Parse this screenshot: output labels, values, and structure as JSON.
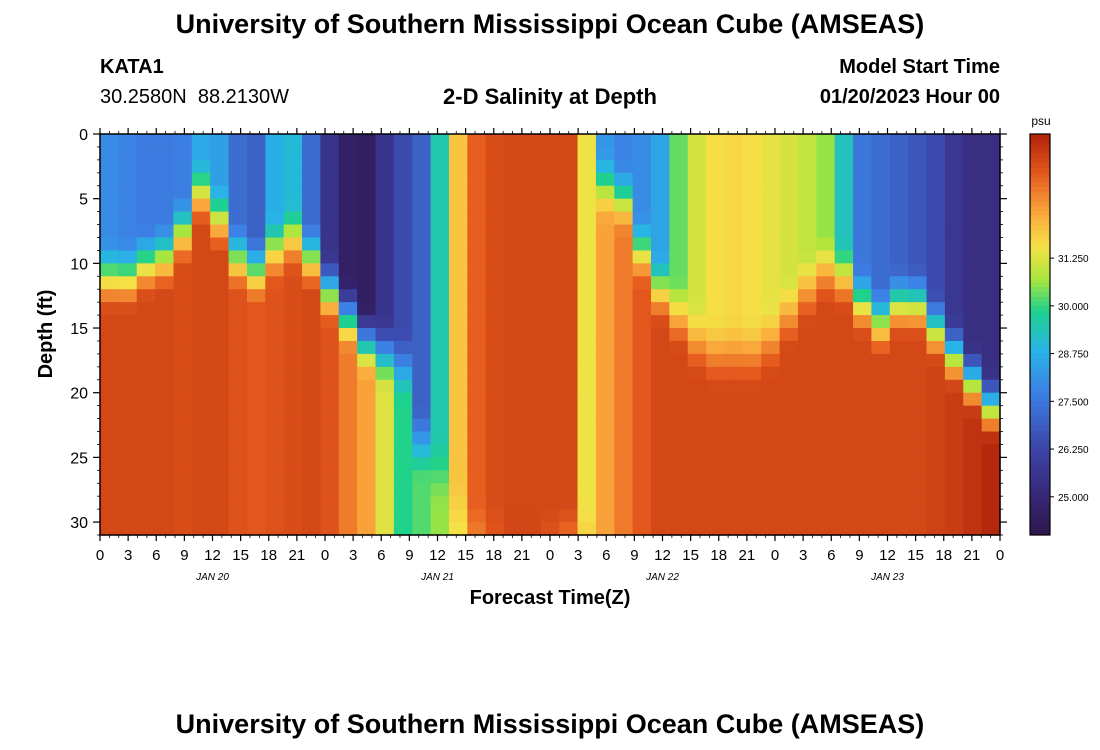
{
  "header": {
    "title": "University of Southern Mississippi Ocean Cube (AMSEAS)",
    "station_id": "KATA1",
    "station_coords": "30.2580N  88.2130W",
    "plot_title": "2-D Salinity at Depth",
    "model_start_label": "Model Start Time",
    "model_start_value": "01/20/2023 Hour 00"
  },
  "footer": {
    "title": "University of Southern Mississippi Ocean Cube (AMSEAS)"
  },
  "colors": {
    "low": "#2d1a4a",
    "mid": "#1fd08a",
    "high": "#c0300a"
  },
  "chart_data": {
    "type": "heatmap",
    "title": "2-D Salinity at Depth",
    "xlabel": "Forecast Time(Z)",
    "ylabel": "Depth (ft)",
    "x_range_hours": [
      0,
      96
    ],
    "x_tick_step_hours": 3,
    "x_tick_labels": [
      "0",
      "3",
      "6",
      "9",
      "12",
      "15",
      "18",
      "21",
      "0",
      "3",
      "6",
      "9",
      "12",
      "15",
      "18",
      "21",
      "0",
      "3",
      "6",
      "9",
      "12",
      "15",
      "18",
      "21",
      "0",
      "3",
      "6",
      "9",
      "12",
      "15",
      "18",
      "21",
      "0"
    ],
    "date_labels": [
      {
        "label": "JAN 20",
        "hour": 12
      },
      {
        "label": "JAN 21",
        "hour": 36
      },
      {
        "label": "JAN 22",
        "hour": 60
      },
      {
        "label": "JAN 23",
        "hour": 84
      }
    ],
    "y_range_ft": [
      0,
      31
    ],
    "y_tick_values": [
      0,
      5,
      10,
      15,
      20,
      25,
      30
    ],
    "y_tick_labels": [
      "0",
      "5",
      "10",
      "15",
      "20",
      "25",
      "30"
    ],
    "colorbar": {
      "unit": "psu",
      "range": [
        24.0,
        34.5
      ],
      "tick_values": [
        25.0,
        26.25,
        27.5,
        28.75,
        30.0,
        31.25
      ],
      "tick_labels": [
        "25.000",
        "26.250",
        "27.500",
        "28.750",
        "30.000",
        "31.250"
      ]
    },
    "surface_salinity_psu": [
      28.0,
      27.8,
      27.6,
      27.6,
      27.7,
      28.6,
      28.4,
      27.3,
      27.0,
      28.7,
      29.0,
      27.2,
      25.5,
      24.6,
      24.5,
      25.6,
      26.4,
      27.0,
      29.5,
      32.0,
      33.4,
      33.7,
      33.8,
      33.8,
      33.8,
      33.8,
      31.5,
      28.2,
      27.8,
      28.0,
      28.5,
      30.3,
      31.2,
      31.6,
      31.7,
      31.6,
      31.4,
      31.2,
      31.0,
      30.6,
      29.3,
      27.5,
      27.3,
      27.0,
      26.7,
      26.4,
      25.7,
      25.3,
      25.3
    ],
    "bottom_salinity_psu": [
      33.8,
      33.8,
      33.8,
      33.8,
      33.7,
      33.8,
      33.8,
      33.6,
      33.5,
      33.6,
      33.7,
      33.8,
      33.6,
      33.0,
      32.5,
      31.3,
      29.9,
      30.2,
      30.6,
      31.5,
      32.5,
      33.4,
      33.9,
      33.9,
      33.4,
      32.6,
      32.1,
      32.5,
      33.0,
      33.5,
      33.8,
      33.8,
      33.8,
      33.8,
      33.8,
      33.8,
      33.8,
      33.8,
      33.8,
      33.8,
      33.8,
      33.8,
      33.8,
      33.8,
      33.8,
      33.9,
      34.0,
      34.2,
      34.4
    ],
    "halocline_depth_ft": [
      11,
      11,
      10,
      9.5,
      7.5,
      4.5,
      6.5,
      9.5,
      10.5,
      9,
      8,
      9.5,
      12,
      14,
      16,
      17,
      18,
      24,
      26,
      29,
      31,
      31,
      31,
      31,
      31,
      31,
      31,
      4,
      5,
      9,
      12,
      14,
      16,
      17,
      17,
      17,
      16,
      14,
      12,
      10.5,
      11,
      13,
      14.5,
      13,
      13,
      15,
      17,
      19,
      21
    ],
    "interface_thickness_ft": 6
  }
}
